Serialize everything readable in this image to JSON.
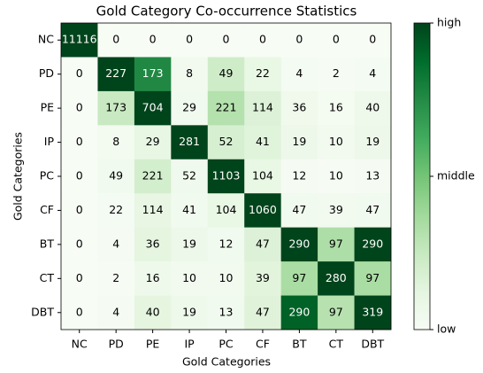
{
  "chart_data": {
    "type": "heatmap",
    "title": "Gold Category Co-occurrence Statistics",
    "xlabel": "Gold Categories",
    "ylabel": "Gold Categories",
    "x_categories": [
      "NC",
      "PD",
      "PE",
      "IP",
      "PC",
      "CF",
      "BT",
      "CT",
      "DBT"
    ],
    "y_categories": [
      "NC",
      "PD",
      "PE",
      "IP",
      "PC",
      "CF",
      "BT",
      "CT",
      "DBT"
    ],
    "values": [
      [
        11116,
        0,
        0,
        0,
        0,
        0,
        0,
        0,
        0
      ],
      [
        0,
        227,
        173,
        8,
        49,
        22,
        4,
        2,
        4
      ],
      [
        0,
        173,
        704,
        29,
        221,
        114,
        36,
        16,
        40
      ],
      [
        0,
        8,
        29,
        281,
        52,
        41,
        19,
        10,
        19
      ],
      [
        0,
        49,
        221,
        52,
        1103,
        104,
        12,
        10,
        13
      ],
      [
        0,
        22,
        114,
        41,
        104,
        1060,
        47,
        39,
        47
      ],
      [
        0,
        4,
        36,
        19,
        12,
        47,
        290,
        97,
        290
      ],
      [
        0,
        2,
        16,
        10,
        10,
        39,
        97,
        280,
        97
      ],
      [
        0,
        4,
        40,
        19,
        13,
        47,
        290,
        97,
        319
      ]
    ],
    "colormap": "Greens",
    "normalize": "row",
    "colorbar_ticks": [
      "low",
      "middle",
      "high"
    ]
  }
}
